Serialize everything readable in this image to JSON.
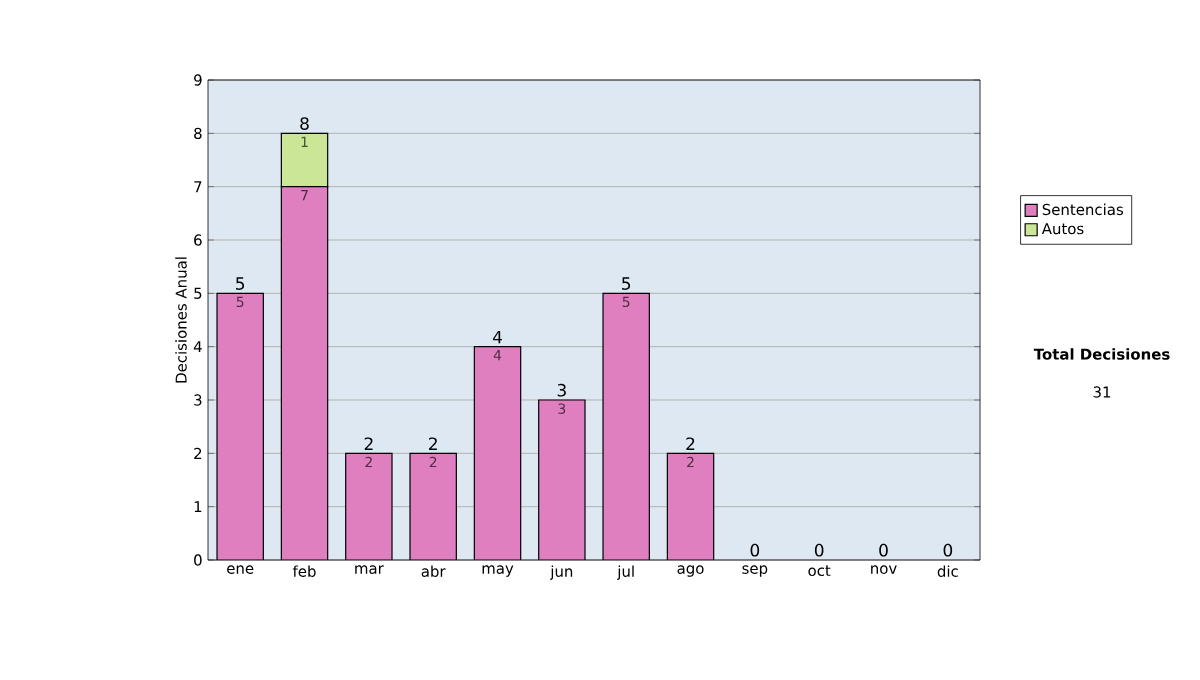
{
  "chart_data": {
    "type": "bar",
    "stacked": true,
    "ylabel": "Decisiones Anual",
    "categories": [
      "ene",
      "feb",
      "mar",
      "abr",
      "may",
      "jun",
      "jul",
      "ago",
      "sep",
      "oct",
      "nov",
      "dic"
    ],
    "series": [
      {
        "name": "Sentencias",
        "color": "#e07fc0",
        "values": [
          5,
          7,
          2,
          2,
          4,
          3,
          5,
          2,
          0,
          0,
          0,
          0
        ],
        "value_labels": [
          "5",
          "7",
          "2",
          "2",
          "4",
          "3",
          "5",
          "2",
          null,
          null,
          null,
          null
        ]
      },
      {
        "name": "Autos",
        "color": "#cce698",
        "values": [
          0,
          1,
          0,
          0,
          0,
          0,
          0,
          0,
          0,
          0,
          0,
          0
        ],
        "value_labels": [
          null,
          "1",
          null,
          null,
          null,
          null,
          null,
          null,
          null,
          null,
          null,
          null
        ]
      }
    ],
    "totals": [
      "5",
      "8",
      "2",
      "2",
      "4",
      "3",
      "5",
      "2",
      "0",
      "0",
      "0",
      "0"
    ],
    "ylim": [
      0,
      9
    ],
    "yticks": [
      0,
      1,
      2,
      3,
      4,
      5,
      6,
      7,
      8,
      9
    ],
    "grid": "y",
    "legend": "right",
    "annotations": [
      "Total Decisiones",
      "31"
    ]
  }
}
